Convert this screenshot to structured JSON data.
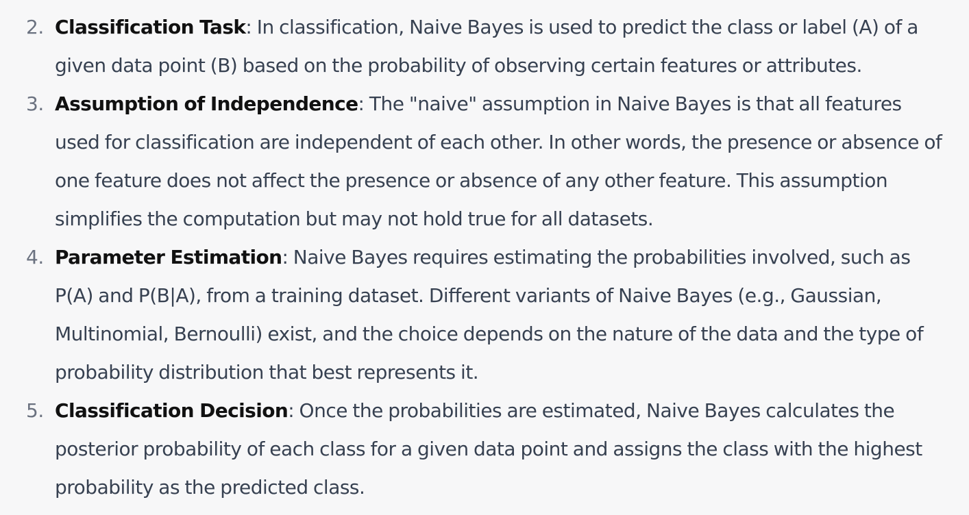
{
  "items": [
    {
      "number": "2.",
      "term": "Classification Task",
      "text": ": In classification, Naive Bayes is used to predict the class or label (A) of a given data point (B) based on the probability of observing certain features or attributes."
    },
    {
      "number": "3.",
      "term": "Assumption of Independence",
      "text": ": The \"naive\" assumption in Naive Bayes is that all features used for classification are independent of each other. In other words, the presence or absence of one feature does not affect the presence or absence of any other feature. This assumption simplifies the computation but may not hold true for all datasets."
    },
    {
      "number": "4.",
      "term": "Parameter Estimation",
      "text": ": Naive Bayes requires estimating the probabilities involved, such as P(A) and P(B|A), from a training dataset. Different variants of Naive Bayes (e.g., Gaussian, Multinomial, Bernoulli) exist, and the choice depends on the nature of the data and the type of probability distribution that best represents it."
    },
    {
      "number": "5.",
      "term": "Classification Decision",
      "text": ": Once the probabilities are estimated, Naive Bayes calculates the posterior probability of each class for a given data point and assigns the class with the highest probability as the predicted class."
    }
  ]
}
